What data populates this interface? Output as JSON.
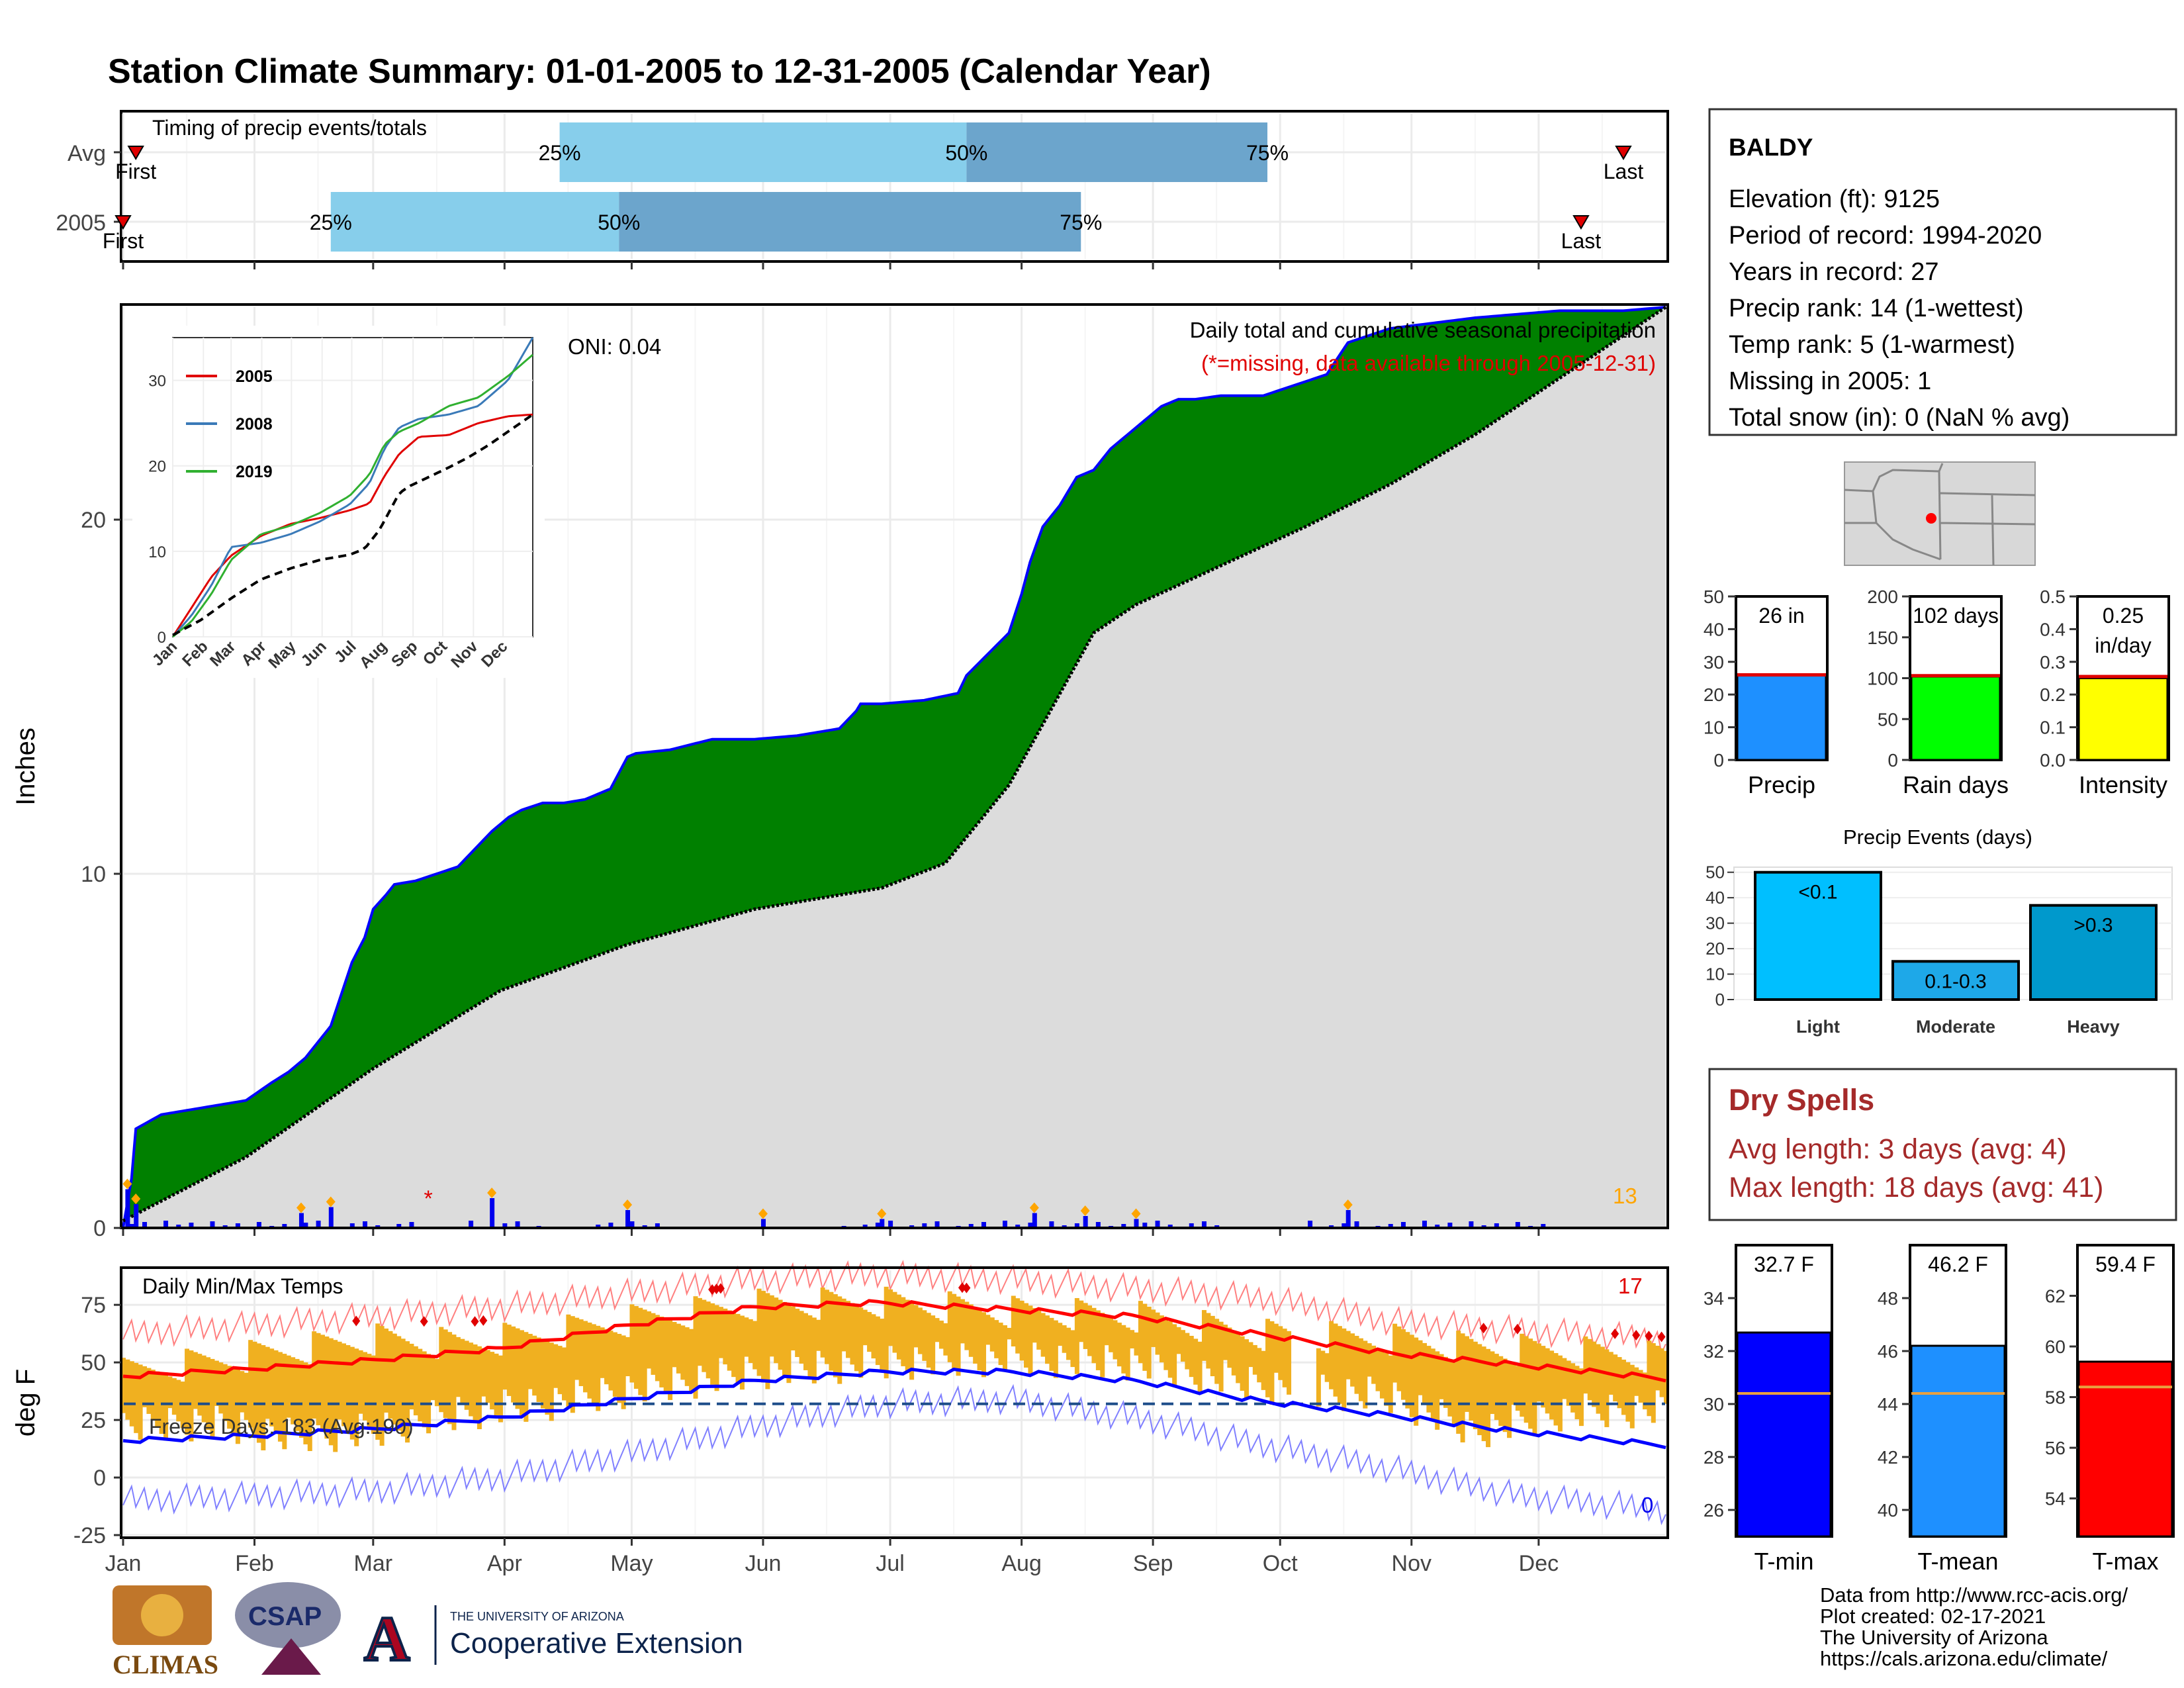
{
  "title": "Station Climate Summary: 01-01-2005 to 12-31-2005 (Calendar Year)",
  "colors": {
    "title": "#0a0a7a",
    "cumulative_fill": "#008000",
    "cumulative_border": "#0000ff",
    "avg_fill": "#dcdcdc",
    "daily_bar": "#0000ee",
    "event_marker": "#ffa500",
    "quartile_light": "#87ceeb",
    "quartile_dark": "#6ca5cc",
    "temp_band": "#f0b020",
    "tmax_line": "#ff0000",
    "tmin_line": "#0000ff",
    "dry_spells_text": "#a52a2a"
  },
  "months": [
    "Jan",
    "Feb",
    "Mar",
    "Apr",
    "May",
    "Jun",
    "Jul",
    "Aug",
    "Sep",
    "Oct",
    "Nov",
    "Dec"
  ],
  "timing": {
    "label": "Timing of precip events/totals",
    "rows": [
      {
        "name": "Avg",
        "first_label": "First",
        "last_label": "Last",
        "q25_label": "25%",
        "q50_label": "50%",
        "q75_label": "75%",
        "first_doy": 4,
        "q25_doy": 104,
        "q50_doy": 200,
        "q75_doy": 271,
        "last_doy": 355
      },
      {
        "name": "2005",
        "first_label": "First",
        "last_label": "Last",
        "q25_label": "25%",
        "q50_label": "50%",
        "q75_label": "75%",
        "first_doy": 1,
        "q25_doy": 50,
        "q50_doy": 118,
        "q75_doy": 227,
        "last_doy": 345
      }
    ]
  },
  "precip_panel": {
    "title": "Daily total and cumulative seasonal precipitation",
    "note": "(*=missing, data available through 2005-12-31)",
    "oni": "ONI: 0.04",
    "ylabel": "Inches",
    "count_label": "13"
  },
  "inset": {
    "months": [
      "Jan",
      "Feb",
      "Mar",
      "Apr",
      "May",
      "Jun",
      "Jul",
      "Aug",
      "Sep",
      "Oct",
      "Nov",
      "Dec"
    ],
    "legend": [
      "2005",
      "2008",
      "2019"
    ]
  },
  "temp_panel": {
    "title": "Daily Min/Max Temps",
    "ylabel": "deg F",
    "freeze_label": "Freeze Days: 183 (Avg:190)",
    "hot_count": "17",
    "cold_count": "0"
  },
  "station": {
    "name": "BALDY",
    "lines": [
      "Elevation (ft): 9125",
      "Period of record: 1994-2020",
      "Years in record: 27",
      "Precip rank: 14 (1-wettest)",
      "Temp rank: 5 (1-warmest)",
      "Missing in 2005: 1",
      "Total snow (in): 0 (NaN % avg)"
    ]
  },
  "precip_events": {
    "title": "Precip Events (days)",
    "categories": [
      "Light",
      "Moderate",
      "Heavy"
    ]
  },
  "dry_spells": {
    "title": "Dry Spells",
    "avg_line": "Avg length: 3 days (avg: 4)",
    "max_line": "Max length: 18 days (avg: 41)"
  },
  "footer": {
    "lines": [
      "Data from http://www.rcc-acis.org/",
      "Plot created: 02-17-2021",
      "The University of Arizona",
      "https://cals.arizona.edu/climate/"
    ],
    "logo_climas": "CLIMAS",
    "logo_csap": "CSAP",
    "ua_small": "THE UNIVERSITY OF ARIZONA",
    "ua_big": "Cooperative Extension"
  },
  "chart_data": [
    {
      "type": "area",
      "title": "Daily total and cumulative seasonal precipitation",
      "ylabel": "Inches",
      "ylim": [
        0,
        26
      ],
      "xlim": [
        1,
        365
      ],
      "series": [
        {
          "name": "2005",
          "x": [
            1,
            3,
            4,
            10,
            20,
            30,
            36,
            40,
            44,
            50,
            55,
            58,
            60,
            63,
            65,
            70,
            80,
            88,
            92,
            95,
            100,
            105,
            110,
            116,
            120,
            122,
            130,
            140,
            150,
            160,
            170,
            174,
            175,
            180,
            190,
            198,
            200,
            205,
            210,
            213,
            215,
            218,
            222,
            226,
            230,
            234,
            240,
            246,
            250,
            254,
            260,
            270,
            285,
            290,
            300,
            320,
            340,
            355,
            365
          ],
          "values": [
            0.0,
            1.4,
            2.8,
            3.2,
            3.4,
            3.6,
            4.1,
            4.4,
            4.8,
            5.7,
            7.5,
            8.2,
            9.0,
            9.4,
            9.7,
            9.8,
            10.2,
            11.2,
            11.6,
            11.8,
            12.0,
            12.0,
            12.1,
            12.4,
            13.3,
            13.4,
            13.5,
            13.8,
            13.8,
            13.9,
            14.1,
            14.6,
            14.8,
            14.8,
            14.9,
            15.1,
            15.6,
            16.2,
            16.8,
            17.9,
            18.8,
            19.8,
            20.4,
            21.2,
            21.4,
            22.0,
            22.6,
            23.2,
            23.4,
            23.4,
            23.5,
            23.5,
            24.1,
            25.0,
            25.4,
            25.7,
            25.9,
            25.9,
            26.0
          ]
        },
        {
          "name": "Average",
          "x": [
            1,
            30,
            60,
            90,
            120,
            150,
            180,
            195,
            210,
            230,
            240,
            260,
            280,
            300,
            320,
            340,
            365
          ],
          "values": [
            0.2,
            2.0,
            4.5,
            6.7,
            8.0,
            9.0,
            9.6,
            10.3,
            12.5,
            16.8,
            17.6,
            18.7,
            19.8,
            21.0,
            22.4,
            24.0,
            26.0
          ]
        }
      ],
      "daily_events": [
        {
          "doy": 2,
          "value": 1.3
        },
        {
          "doy": 4,
          "value": 0.8
        },
        {
          "doy": 43,
          "value": 0.5
        },
        {
          "doy": 50,
          "value": 0.7
        },
        {
          "doy": 88,
          "value": 1.0
        },
        {
          "doy": 120,
          "value": 0.6
        },
        {
          "doy": 152,
          "value": 0.3
        },
        {
          "doy": 180,
          "value": 0.3
        },
        {
          "doy": 216,
          "value": 0.5
        },
        {
          "doy": 228,
          "value": 0.4
        },
        {
          "doy": 240,
          "value": 0.3
        },
        {
          "doy": 290,
          "value": 0.6
        }
      ],
      "missing_days": [
        73
      ]
    },
    {
      "type": "line",
      "title": "",
      "categories": [
        "Jan",
        "Feb",
        "Mar",
        "Apr",
        "May",
        "Jun",
        "Jul",
        "Aug",
        "Sep",
        "Oct",
        "Nov",
        "Dec"
      ],
      "ylim": [
        0,
        35
      ],
      "xlim": [
        1,
        365
      ],
      "series": [
        {
          "name": "2005",
          "x": [
            1,
            20,
            40,
            60,
            90,
            120,
            150,
            180,
            200,
            215,
            230,
            250,
            280,
            310,
            340,
            365
          ],
          "values": [
            0,
            3.4,
            7,
            9.5,
            11.8,
            13.2,
            13.9,
            14.8,
            15.6,
            18.8,
            21.4,
            23.4,
            23.6,
            25.0,
            25.8,
            26.0
          ]
        },
        {
          "name": "2008",
          "x": [
            1,
            20,
            40,
            60,
            90,
            120,
            150,
            180,
            200,
            215,
            230,
            250,
            280,
            310,
            340,
            365
          ],
          "values": [
            0,
            2.5,
            6,
            10.5,
            11.0,
            12.0,
            13.5,
            15.5,
            18.0,
            22.0,
            24.5,
            25.5,
            26.0,
            27.0,
            30.0,
            35.0
          ]
        },
        {
          "name": "2019",
          "x": [
            1,
            20,
            40,
            60,
            90,
            120,
            150,
            180,
            200,
            215,
            230,
            250,
            280,
            310,
            340,
            365
          ],
          "values": [
            0,
            1.8,
            5,
            9.0,
            12.0,
            13.0,
            14.5,
            16.5,
            19.0,
            22.5,
            24.0,
            25.0,
            27.0,
            28.0,
            30.5,
            33.0
          ]
        },
        {
          "name": "",
          "x": [
            1,
            30,
            60,
            90,
            120,
            150,
            180,
            195,
            210,
            230,
            240,
            260,
            280,
            300,
            320,
            340,
            365
          ],
          "values": [
            0.2,
            2.0,
            4.5,
            6.7,
            8.0,
            9.0,
            9.6,
            10.3,
            12.5,
            16.8,
            17.6,
            18.7,
            19.8,
            21.0,
            22.4,
            24.0,
            26.0
          ]
        }
      ]
    },
    {
      "type": "line",
      "title": "Daily Min/Max Temps",
      "ylabel": "deg F",
      "ylim": [
        -25,
        90
      ],
      "xlim": [
        1,
        365
      ],
      "freeze_line": 32,
      "series": [
        {
          "name": "record max",
          "x": [
            1,
            30,
            60,
            90,
            120,
            150,
            180,
            210,
            240,
            270,
            300,
            330,
            365
          ],
          "values": [
            62,
            66,
            70,
            74,
            80,
            86,
            88,
            86,
            82,
            78,
            68,
            64,
            60
          ]
        },
        {
          "name": "avg max",
          "x": [
            1,
            30,
            60,
            90,
            120,
            150,
            180,
            210,
            240,
            270,
            300,
            330,
            365
          ],
          "values": [
            44,
            47,
            51,
            56,
            66,
            74,
            76,
            73,
            70,
            62,
            54,
            49,
            43
          ]
        },
        {
          "name": "avg min",
          "x": [
            1,
            30,
            60,
            90,
            120,
            150,
            180,
            210,
            240,
            270,
            300,
            330,
            365
          ],
          "values": [
            16,
            18,
            21,
            26,
            34,
            42,
            46,
            46,
            42,
            33,
            27,
            20,
            14
          ]
        },
        {
          "name": "record min",
          "x": [
            1,
            30,
            60,
            90,
            120,
            150,
            180,
            210,
            240,
            270,
            300,
            330,
            365
          ],
          "values": [
            -10,
            -8,
            -6,
            0,
            10,
            22,
            32,
            34,
            26,
            14,
            4,
            -8,
            -14
          ]
        },
        {
          "name": "2005 max",
          "x": [
            1,
            20,
            40,
            60,
            80,
            100,
            120,
            150,
            180,
            210,
            240,
            270,
            300,
            320,
            340,
            365
          ],
          "values": [
            45,
            50,
            55,
            60,
            58,
            62,
            68,
            75,
            76,
            72,
            70,
            62,
            60,
            56,
            55,
            52
          ]
        },
        {
          "name": "2005 min",
          "x": [
            1,
            20,
            40,
            60,
            80,
            100,
            120,
            150,
            180,
            210,
            240,
            270,
            300,
            320,
            340,
            365
          ],
          "values": [
            22,
            24,
            18,
            20,
            28,
            32,
            38,
            46,
            50,
            52,
            50,
            40,
            35,
            20,
            28,
            30
          ]
        }
      ],
      "record_high_days": [
        56,
        72,
        84,
        86,
        140,
        141,
        142,
        199,
        200,
        322,
        330,
        353,
        358,
        361,
        364
      ]
    },
    {
      "type": "bar",
      "title": "",
      "categories": [
        "Precip"
      ],
      "values": [
        26
      ],
      "average": 26,
      "label": "26 in",
      "ylim": [
        0,
        50
      ],
      "ticks": [
        0,
        10,
        20,
        30,
        40,
        50
      ]
    },
    {
      "type": "bar",
      "title": "",
      "categories": [
        "Rain days"
      ],
      "values": [
        102
      ],
      "average": 103,
      "label": "102 days",
      "ylim": [
        0,
        200
      ],
      "ticks": [
        0,
        50,
        100,
        150,
        200
      ]
    },
    {
      "type": "bar",
      "title": "",
      "categories": [
        "Intensity"
      ],
      "values": [
        0.25
      ],
      "average": 0.255,
      "label": [
        "0.25",
        "in/day"
      ],
      "ylim": [
        0,
        0.5
      ],
      "ticks": [
        "0.0",
        "0.1",
        "0.2",
        "0.3",
        "0.4",
        "0.5"
      ]
    },
    {
      "type": "bar",
      "title": "Precip Events (days)",
      "categories": [
        "Light",
        "Moderate",
        "Heavy"
      ],
      "values": [
        50,
        15,
        37
      ],
      "bar_labels": [
        "<0.1",
        "0.1-0.3",
        ">0.3"
      ],
      "ylim": [
        0,
        52
      ],
      "ticks": [
        0,
        10,
        20,
        30,
        40,
        50
      ]
    },
    {
      "type": "bar",
      "title": "",
      "categories": [
        "T-min"
      ],
      "values": [
        32.7
      ],
      "average": 30.4,
      "label": "32.7 F",
      "ylim": [
        25,
        36
      ],
      "ticks": [
        26,
        28,
        30,
        32,
        34
      ]
    },
    {
      "type": "bar",
      "title": "",
      "categories": [
        "T-mean"
      ],
      "values": [
        46.2
      ],
      "average": 44.4,
      "label": "46.2 F",
      "ylim": [
        39,
        50
      ],
      "ticks": [
        40,
        42,
        44,
        46,
        48
      ]
    },
    {
      "type": "bar",
      "title": "",
      "categories": [
        "T-max"
      ],
      "values": [
        59.4
      ],
      "average": 58.4,
      "label": "59.4 F",
      "ylim": [
        52.5,
        64
      ],
      "ticks": [
        54,
        56,
        58,
        60,
        62
      ]
    }
  ]
}
